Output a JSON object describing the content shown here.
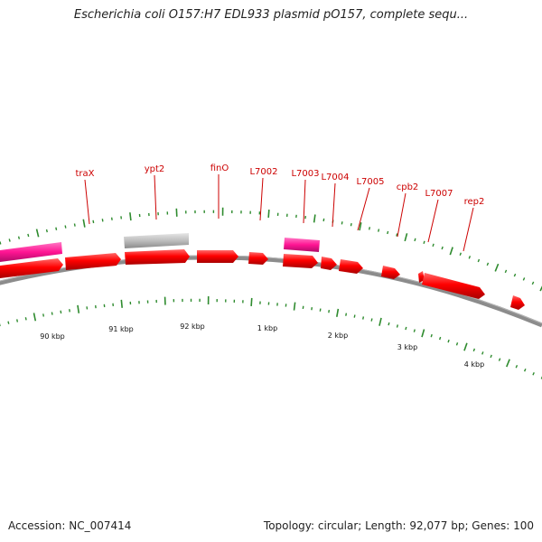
{
  "title": "Escherichia coli O157:H7 EDL933 plasmid pO157, complete sequ...",
  "footer": {
    "accession": "Accession: NC_007414",
    "summary": "Topology: circular; Length: 92,077 bp; Genes: 100"
  },
  "colors": {
    "gene_forward": "#ff0000",
    "gene_misc": "#ff1493",
    "gene_pseudo": "#bdbdbd",
    "backbone": "#8c8c8c",
    "tick": "#2e8b2e",
    "label": "#cc0000"
  },
  "map": {
    "genes": [
      {
        "name": "traX",
        "label": "traX"
      },
      {
        "name": "ypt2",
        "label": "ypt2"
      },
      {
        "name": "finO",
        "label": "finO"
      },
      {
        "name": "L7002",
        "label": "L7002"
      },
      {
        "name": "L7003",
        "label": "L7003"
      },
      {
        "name": "L7004",
        "label": "L7004"
      },
      {
        "name": "L7005",
        "label": "L7005"
      },
      {
        "name": "cpb2",
        "label": "cpb2"
      },
      {
        "name": "L7007",
        "label": "L7007"
      },
      {
        "name": "rep2",
        "label": "rep2"
      }
    ],
    "scale_labels": [
      "90 kbp",
      "91 kbp",
      "92 kbp",
      "1 kbp",
      "2 kbp",
      "3 kbp",
      "4 kbp"
    ]
  }
}
